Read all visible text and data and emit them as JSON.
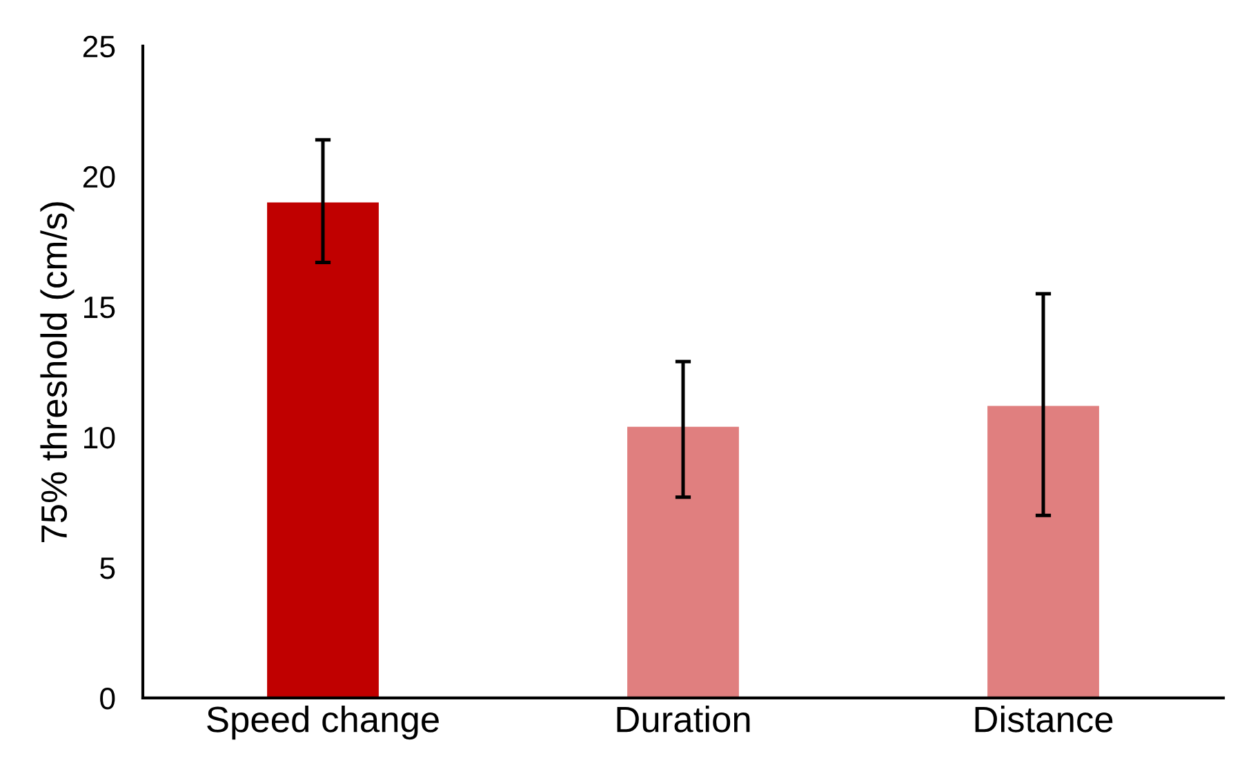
{
  "chart_data": {
    "type": "bar",
    "ylabel": "75% threshold (cm/s)",
    "categories": [
      "Speed change",
      "Duration",
      "Distance"
    ],
    "values": [
      19.0,
      10.4,
      11.2
    ],
    "colors": [
      "#c00000",
      "#e07f7f",
      "#e07f7f"
    ],
    "errors": [
      [
        16.7,
        21.4
      ],
      [
        7.7,
        12.9
      ],
      [
        7.0,
        15.5
      ]
    ],
    "ylim": [
      0,
      25
    ],
    "yticks": [
      0,
      5,
      10,
      15,
      20,
      25
    ],
    "grid": false,
    "legend": false
  }
}
